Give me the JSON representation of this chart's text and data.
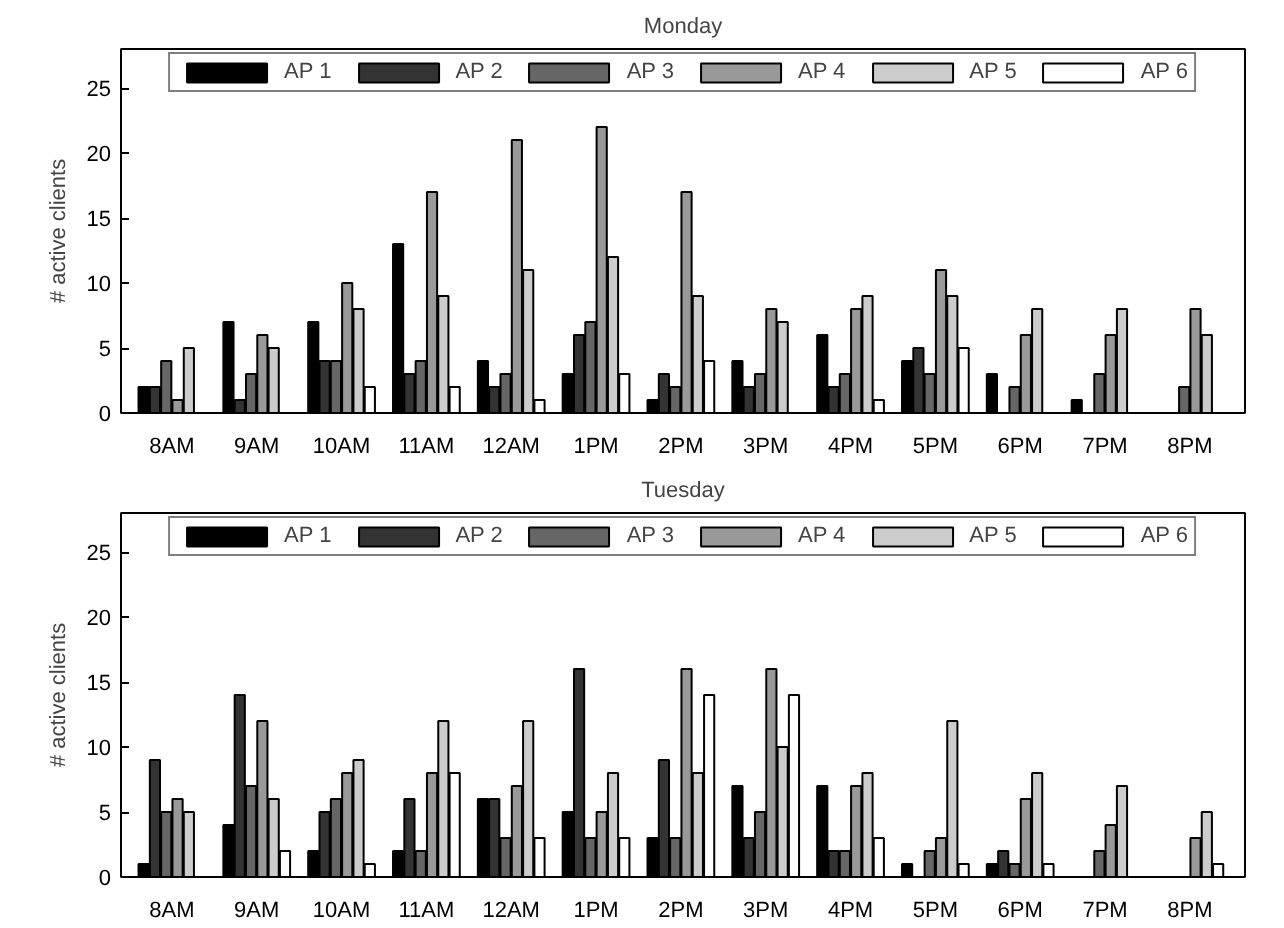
{
  "chart_data": [
    {
      "type": "bar",
      "title": "Monday",
      "ylabel": "# active clients",
      "categories": [
        "8AM",
        "9AM",
        "10AM",
        "11AM",
        "12AM",
        "1PM",
        "2PM",
        "3PM",
        "4PM",
        "5PM",
        "6PM",
        "7PM",
        "8PM"
      ],
      "ylim": [
        0,
        28
      ],
      "yticks": [
        0,
        5,
        10,
        15,
        20,
        25
      ],
      "grid": false,
      "legend": "top",
      "series": [
        {
          "name": "AP 1",
          "color": "#000000",
          "values": [
            2,
            7,
            7,
            13,
            4,
            3,
            1,
            4,
            6,
            4,
            3,
            1,
            null
          ]
        },
        {
          "name": "AP 2",
          "color": "#333333",
          "values": [
            2,
            1,
            4,
            3,
            2,
            6,
            3,
            2,
            2,
            5,
            null,
            null,
            null
          ]
        },
        {
          "name": "AP 3",
          "color": "#666666",
          "values": [
            4,
            3,
            4,
            4,
            3,
            7,
            2,
            3,
            3,
            3,
            2,
            3,
            2
          ]
        },
        {
          "name": "AP 4",
          "color": "#999999",
          "values": [
            1,
            6,
            10,
            17,
            21,
            22,
            17,
            8,
            8,
            11,
            6,
            6,
            8
          ]
        },
        {
          "name": "AP 5",
          "color": "#cccccc",
          "values": [
            5,
            5,
            8,
            9,
            11,
            12,
            9,
            7,
            9,
            9,
            8,
            8,
            6
          ]
        },
        {
          "name": "AP 6",
          "color": "#ffffff",
          "values": [
            null,
            null,
            2,
            2,
            1,
            3,
            4,
            null,
            1,
            5,
            null,
            null,
            null
          ]
        }
      ]
    },
    {
      "type": "bar",
      "title": "Tuesday",
      "ylabel": "# active clients",
      "categories": [
        "8AM",
        "9AM",
        "10AM",
        "11AM",
        "12AM",
        "1PM",
        "2PM",
        "3PM",
        "4PM",
        "5PM",
        "6PM",
        "7PM",
        "8PM"
      ],
      "ylim": [
        0,
        28
      ],
      "yticks": [
        0,
        5,
        10,
        15,
        20,
        25
      ],
      "grid": false,
      "legend": "top",
      "series": [
        {
          "name": "AP 1",
          "color": "#000000",
          "values": [
            1,
            4,
            2,
            2,
            6,
            5,
            3,
            7,
            7,
            1,
            1,
            null,
            null
          ]
        },
        {
          "name": "AP 2",
          "color": "#333333",
          "values": [
            9,
            14,
            5,
            6,
            6,
            16,
            9,
            3,
            2,
            null,
            2,
            null,
            null
          ]
        },
        {
          "name": "AP 3",
          "color": "#666666",
          "values": [
            5,
            7,
            6,
            2,
            3,
            3,
            3,
            5,
            2,
            2,
            1,
            2,
            null
          ]
        },
        {
          "name": "AP 4",
          "color": "#999999",
          "values": [
            6,
            12,
            8,
            8,
            7,
            5,
            16,
            16,
            7,
            3,
            6,
            4,
            3
          ]
        },
        {
          "name": "AP 5",
          "color": "#cccccc",
          "values": [
            5,
            6,
            9,
            12,
            12,
            8,
            8,
            10,
            8,
            12,
            8,
            7,
            5
          ]
        },
        {
          "name": "AP 6",
          "color": "#ffffff",
          "values": [
            null,
            2,
            1,
            8,
            3,
            3,
            14,
            14,
            3,
            1,
            1,
            null,
            1
          ]
        }
      ]
    }
  ]
}
